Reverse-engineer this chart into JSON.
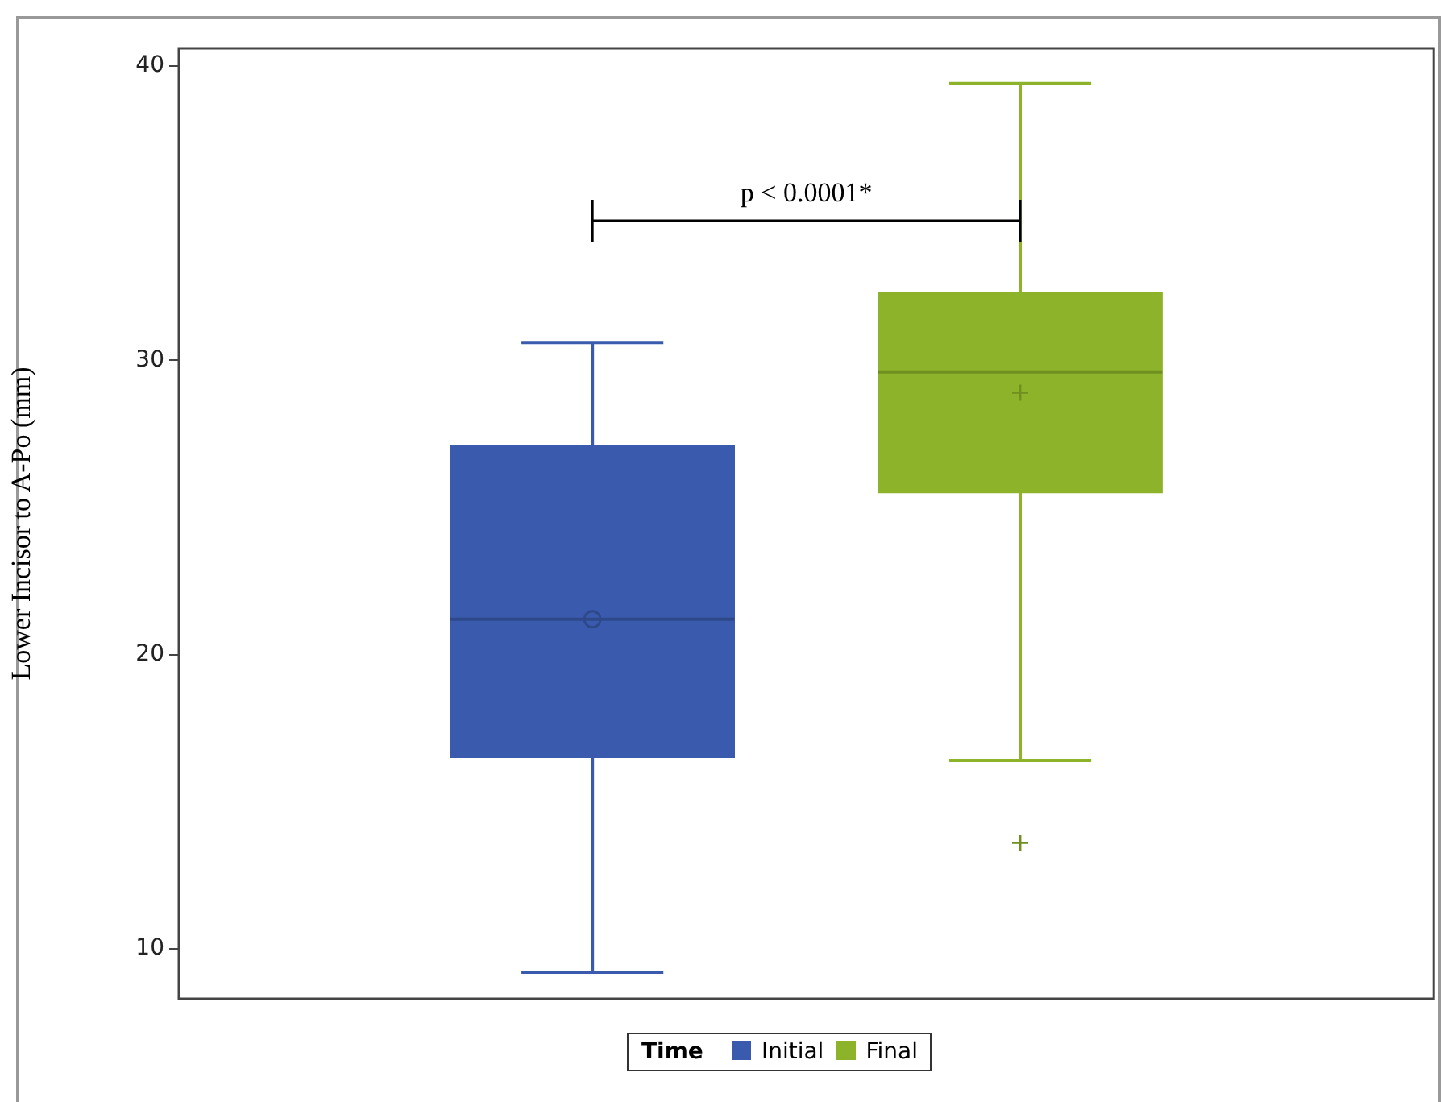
{
  "chart_data": {
    "type": "box",
    "ylabel": "Lower Incisor to A-Po (mm)",
    "legend_title": "Time",
    "legend": "bottom",
    "grid": false,
    "categories": [
      null
    ],
    "ylim": [
      8.3,
      40.6
    ],
    "yticks": [
      10,
      20,
      30,
      40
    ],
    "annotations": [
      "p < 0.0001*"
    ],
    "series": [
      {
        "name": "Initial",
        "color": "#3a5bad",
        "marker": "circle",
        "boxes": [
          {
            "low": 9.2,
            "q1": 16.5,
            "median": 21.2,
            "q3": 27.1,
            "high": 30.6,
            "mean": 21.2
          }
        ]
      },
      {
        "name": "Final",
        "color": "#8db32a",
        "marker": "cross",
        "boxes": [
          {
            "low": 16.4,
            "q1": 25.5,
            "median": 29.6,
            "q3": 32.3,
            "high": 39.4,
            "mean": 28.9,
            "outliers": [
              13.6
            ]
          }
        ]
      }
    ]
  }
}
